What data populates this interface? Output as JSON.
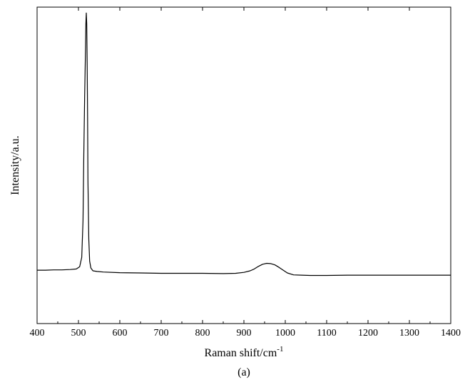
{
  "chart_data": {
    "type": "line",
    "title": "",
    "xlabel": "Raman shift/cm",
    "xlabel_superscript": "-1",
    "ylabel": "Intensity/a.u.",
    "caption": "(a)",
    "xlim": [
      400,
      1400
    ],
    "ylim": [
      0,
      1
    ],
    "x_ticks": [
      400,
      500,
      600,
      700,
      800,
      900,
      1000,
      1100,
      1200,
      1300,
      1400
    ],
    "y_tick_labels": false,
    "grid": false,
    "legend": "none",
    "line_color": "#000000",
    "series": [
      {
        "x": [
          400,
          420,
          440,
          460,
          480,
          495,
          503,
          508,
          511,
          513,
          515,
          517,
          518,
          519,
          520,
          521,
          522,
          523,
          525,
          527,
          530,
          535,
          545,
          560,
          600,
          650,
          700,
          750,
          800,
          850,
          880,
          900,
          915,
          925,
          935,
          945,
          955,
          965,
          975,
          985,
          995,
          1005,
          1020,
          1040,
          1060,
          1100,
          1150,
          1200,
          1250,
          1300,
          1350,
          1400
        ],
        "y": [
          0.171,
          0.171,
          0.172,
          0.172,
          0.173,
          0.175,
          0.182,
          0.212,
          0.33,
          0.54,
          0.73,
          0.88,
          0.96,
          0.995,
          0.96,
          0.84,
          0.66,
          0.46,
          0.27,
          0.2,
          0.178,
          0.169,
          0.167,
          0.165,
          0.163,
          0.162,
          0.161,
          0.161,
          0.161,
          0.16,
          0.161,
          0.164,
          0.169,
          0.175,
          0.183,
          0.19,
          0.193,
          0.192,
          0.188,
          0.18,
          0.171,
          0.162,
          0.156,
          0.155,
          0.154,
          0.154,
          0.155,
          0.155,
          0.155,
          0.155,
          0.155,
          0.155
        ]
      }
    ]
  }
}
